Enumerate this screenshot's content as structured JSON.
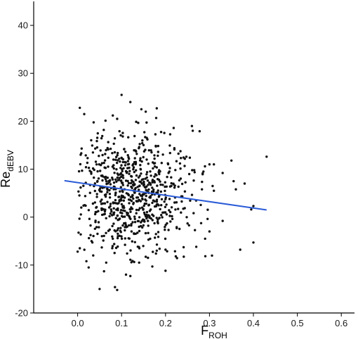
{
  "chart_data": {
    "type": "scatter",
    "xlabel": {
      "main": "F",
      "sub": "ROH"
    },
    "ylabel": {
      "main": "Re",
      "sub": "dEBV"
    },
    "xlim": [
      -0.1,
      0.63
    ],
    "ylim": [
      -20,
      45
    ],
    "xticks": [
      0.0,
      0.1,
      0.2,
      0.3,
      0.4,
      0.5,
      0.6
    ],
    "xtick_labels": [
      "0.0",
      "0.1",
      "0.2",
      "0.3",
      "0.4",
      "0.5",
      "0.6"
    ],
    "yticks": [
      -20,
      -10,
      0,
      10,
      20,
      30,
      40
    ],
    "ytick_labels": [
      "-20",
      "-10",
      "0",
      "10",
      "20",
      "30",
      "40"
    ],
    "grid": false,
    "point_color": "#111111",
    "trend_color": "#2a5bd7",
    "trend_line": {
      "x": [
        -0.03,
        0.43
      ],
      "y": [
        7.6,
        1.5
      ]
    },
    "points": [
      [
        0.1,
        25.5
      ],
      [
        0.12,
        24.0
      ],
      [
        0.145,
        22.5
      ],
      [
        0.155,
        22.0
      ],
      [
        0.18,
        22.7
      ],
      [
        0.005,
        22.8
      ],
      [
        0.015,
        21.5
      ],
      [
        0.08,
        21.2
      ],
      [
        0.09,
        20.5
      ],
      [
        0.26,
        19.0
      ],
      [
        0.35,
        11.8
      ],
      [
        0.43,
        12.6
      ],
      [
        0.38,
        7.0
      ],
      [
        0.4,
        2.3
      ],
      [
        0.4,
        -5.3
      ],
      [
        0.37,
        -6.8
      ],
      [
        0.33,
        -0.8
      ],
      [
        0.33,
        9.2
      ],
      [
        0.31,
        11.0
      ],
      [
        0.3,
        11.0
      ],
      [
        0.355,
        7.5
      ],
      [
        0.36,
        5.8
      ],
      [
        0.395,
        1.6
      ],
      [
        0.31,
        5.5
      ],
      [
        0.3,
        -3.0
      ],
      [
        0.29,
        -4.5
      ],
      [
        0.27,
        -6.2
      ],
      [
        0.2,
        -11.2
      ],
      [
        0.17,
        -10.3
      ],
      [
        0.11,
        -12.0
      ],
      [
        0.12,
        -12.3
      ],
      [
        0.085,
        -14.6
      ],
      [
        0.09,
        -15.2
      ],
      [
        0.05,
        -15.0
      ],
      [
        0.06,
        -11.3
      ],
      [
        0.025,
        -10.5
      ],
      [
        0.02,
        -9.2
      ],
      [
        0.0,
        -7.2
      ],
      [
        0.005,
        -6.5
      ],
      [
        0.065,
        -9.5
      ],
      [
        0.14,
        -9.5
      ],
      [
        0.16,
        -8.5
      ],
      [
        0.12,
        -8.9
      ],
      [
        0.18,
        -7.0
      ],
      [
        0.2,
        -6.8
      ]
    ],
    "cloud": {
      "count": 760,
      "x_center": 0.125,
      "x_spread": 0.07,
      "x_min": -0.005,
      "x_max": 0.34,
      "y_center": 5.0,
      "y_spread": 6.4,
      "y_min": -9.5,
      "y_max": 21.5,
      "seed": 7
    }
  }
}
